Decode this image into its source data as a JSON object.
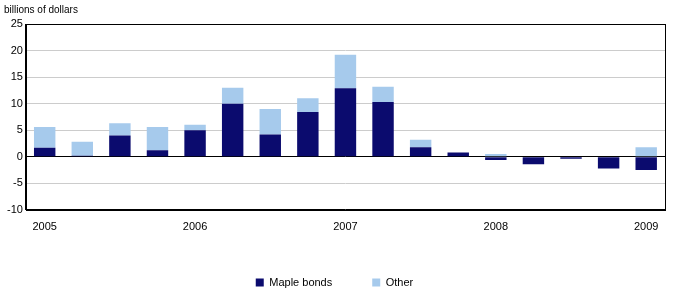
{
  "chart_data": {
    "type": "bar",
    "y_label": "billions of dollars",
    "categories": [
      "2005",
      null,
      null,
      null,
      "2006",
      null,
      null,
      null,
      "2007",
      null,
      null,
      null,
      "2008",
      null,
      null,
      null,
      "2009"
    ],
    "series": [
      {
        "name": "Maple bonds",
        "color": "#0b0b6e",
        "values": [
          1.7,
          0.2,
          4.0,
          1.2,
          5.0,
          10.0,
          4.2,
          8.4,
          12.9,
          10.3,
          1.8,
          0.8,
          -0.6,
          -1.4,
          -0.4,
          -2.2,
          -2.5
        ]
      },
      {
        "name": "Other",
        "color": "#a6caec",
        "values": [
          3.9,
          2.6,
          2.3,
          4.4,
          1.0,
          3.0,
          4.8,
          2.6,
          6.3,
          2.9,
          1.4,
          0,
          0.5,
          0,
          0,
          0,
          1.8
        ]
      }
    ],
    "ylim": [
      -10,
      25
    ],
    "yticks": [
      -10,
      -5,
      0,
      5,
      10,
      15,
      20,
      25
    ],
    "stacked": true,
    "grid": true,
    "legend": "bottom"
  }
}
